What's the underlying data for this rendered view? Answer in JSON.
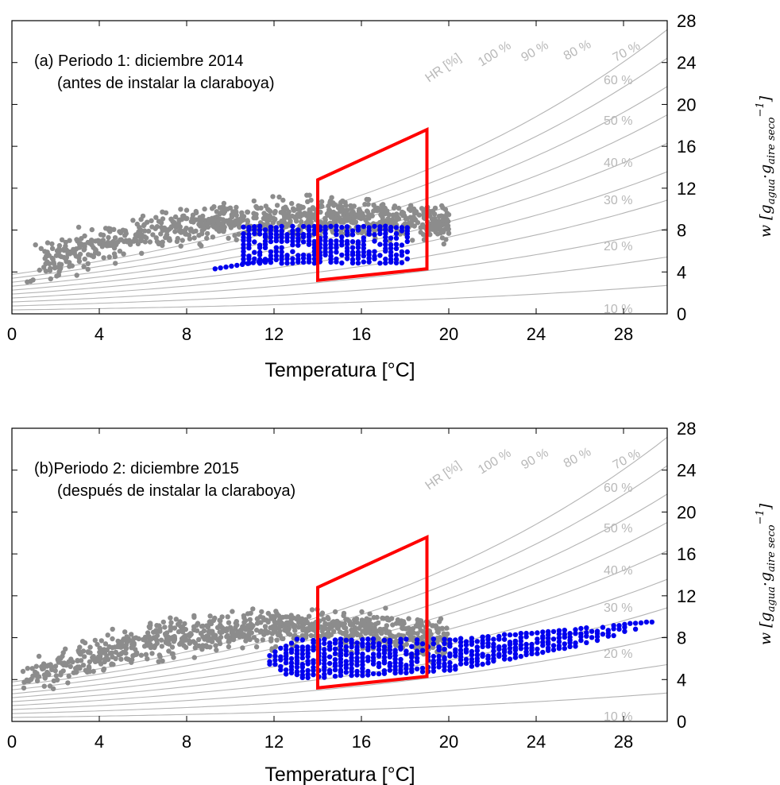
{
  "chart_data": [
    {
      "type": "scatter",
      "title": "(a) Periodo 1: diciembre 2014",
      "subtitle": "(antes de instalar la claraboya)",
      "xlabel": "Temperatura [°C]",
      "ylabel": "w [g_agua·g_aire seco^-1]",
      "xlim": [
        0,
        30
      ],
      "ylim": [
        0,
        28
      ],
      "xticks": [
        0,
        4,
        8,
        12,
        16,
        20,
        24,
        28
      ],
      "yticks": [
        0,
        4,
        8,
        12,
        16,
        20,
        24,
        28
      ],
      "rh_title": "HR [%]",
      "rh_curves": [
        10,
        20,
        30,
        40,
        50,
        60,
        70,
        80,
        90,
        100
      ],
      "rh_labels": [
        "10 %",
        "20 %",
        "30 %",
        "40 %",
        "50 %",
        "60 %",
        "70 %",
        "80 %",
        "90 %",
        "100 %"
      ],
      "comfort_zone": {
        "color": "#ff0000",
        "vertices": [
          [
            14,
            3.2
          ],
          [
            14,
            12.8
          ],
          [
            19,
            17.6
          ],
          [
            19,
            4.3
          ]
        ]
      },
      "series": [
        {
          "color": "#8c8c8c",
          "trend": [
            [
              0.7,
              5.0
            ],
            [
              2,
              6.0
            ],
            [
              4,
              7.3
            ],
            [
              6,
              8.4
            ],
            [
              8,
              9.1
            ],
            [
              10,
              9.6
            ],
            [
              12,
              9.9
            ],
            [
              14,
              10.0
            ],
            [
              16,
              9.9
            ],
            [
              18,
              9.7
            ],
            [
              20,
              9.3
            ]
          ],
          "spread": {
            "above": 1.7,
            "below": 3.2
          },
          "count": 900
        },
        {
          "color": "#0000ee",
          "x_range": [
            10.6,
            18.0
          ],
          "y_range": [
            4.9,
            8.3
          ],
          "tail": [
            [
              9.3,
              4.3
            ],
            [
              12,
              5.2
            ]
          ],
          "count": 520
        }
      ]
    },
    {
      "type": "scatter",
      "title": "(b)Periodo 2: diciembre 2015",
      "subtitle": "(después de instalar la claraboya)",
      "xlabel": "Temperatura [°C]",
      "ylabel": "w [g_agua·g_aire seco^-1]",
      "xlim": [
        0,
        30
      ],
      "ylim": [
        0,
        28
      ],
      "xticks": [
        0,
        4,
        8,
        12,
        16,
        20,
        24,
        28
      ],
      "yticks": [
        0,
        4,
        8,
        12,
        16,
        20,
        24,
        28
      ],
      "rh_title": "HR [%]",
      "rh_curves": [
        10,
        20,
        30,
        40,
        50,
        60,
        70,
        80,
        90,
        100
      ],
      "rh_labels": [
        "10 %",
        "20 %",
        "30 %",
        "40 %",
        "50 %",
        "60 %",
        "70 %",
        "80 %",
        "90 %",
        "100 %"
      ],
      "comfort_zone": {
        "color": "#ff0000",
        "vertices": [
          [
            14,
            3.2
          ],
          [
            14,
            12.8
          ],
          [
            19,
            17.6
          ],
          [
            19,
            4.3
          ]
        ]
      },
      "series": [
        {
          "color": "#8c8c8c",
          "trend": [
            [
              0.3,
              4.6
            ],
            [
              2,
              6.0
            ],
            [
              4,
              7.3
            ],
            [
              6,
              8.4
            ],
            [
              8,
              9.1
            ],
            [
              10,
              9.6
            ],
            [
              12,
              9.8
            ],
            [
              14,
              9.8
            ],
            [
              16,
              9.6
            ],
            [
              18,
              9.3
            ],
            [
              20,
              8.8
            ]
          ],
          "spread": {
            "above": 1.6,
            "below": 3.4
          },
          "count": 900
        },
        {
          "color": "#0000ee",
          "x_range": [
            11.8,
            29.2
          ],
          "lower": [
            [
              11.8,
              5.4
            ],
            [
              13,
              4.1
            ],
            [
              20,
              4.9
            ],
            [
              26,
              7.3
            ],
            [
              29.2,
              9.3
            ]
          ],
          "upper": [
            [
              11.8,
              6.3
            ],
            [
              13,
              7.8
            ],
            [
              20,
              7.8
            ],
            [
              26,
              8.8
            ],
            [
              29.2,
              9.5
            ]
          ],
          "count": 900
        }
      ]
    }
  ]
}
